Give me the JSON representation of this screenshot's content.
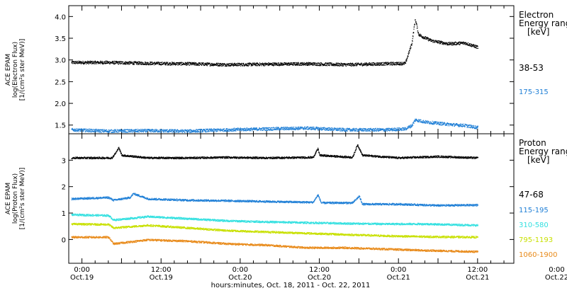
{
  "chart_data": [
    {
      "type": "scatter",
      "panel_id": "electron",
      "ylabel_lines": [
        "ACE EPAM",
        "log(Electron Flux)",
        "[1/(cm²s ster MeV)]"
      ],
      "ylim": [
        1.3,
        4.25
      ],
      "y_ticks": [
        1.5,
        2.0,
        2.5,
        3.0,
        3.5,
        4.0
      ],
      "y_tick_labels": [
        "1.5",
        "2.0",
        "2.5",
        "3.0",
        "3.5",
        "4.0"
      ],
      "legend_title": [
        "Electron",
        "Energy ranges",
        "[keV]"
      ],
      "series": [
        {
          "name": "38-53",
          "color": "#000000",
          "x": [
            0.75,
            12,
            24,
            36,
            48,
            60,
            72,
            84,
            96,
            102,
            104,
            105,
            106,
            107,
            110,
            115,
            120,
            124
          ],
          "values": [
            2.95,
            2.95,
            2.93,
            2.92,
            2.9,
            2.91,
            2.92,
            2.9,
            2.92,
            2.93,
            3.4,
            3.95,
            3.6,
            3.55,
            3.45,
            3.38,
            3.4,
            3.3
          ]
        },
        {
          "name": "175-315",
          "color": "#1f7fd6",
          "x": [
            0.75,
            12,
            24,
            36,
            48,
            60,
            72,
            84,
            96,
            102,
            104,
            105,
            108,
            112,
            116,
            120,
            124
          ],
          "values": [
            1.4,
            1.37,
            1.38,
            1.37,
            1.4,
            1.42,
            1.44,
            1.4,
            1.4,
            1.42,
            1.5,
            1.63,
            1.58,
            1.55,
            1.52,
            1.5,
            1.45
          ]
        }
      ]
    },
    {
      "type": "scatter",
      "panel_id": "proton",
      "ylabel_lines": [
        "ACE EPAM",
        "log(Proton Flux)",
        "[1/(cm²s ster MeV)]"
      ],
      "ylim": [
        -0.9,
        4.0
      ],
      "y_ticks": [
        0,
        1,
        2,
        3
      ],
      "y_tick_labels": [
        "0",
        "1",
        "2",
        "3"
      ],
      "legend_title": [
        "Proton",
        "Energy ranges",
        "[keV]"
      ],
      "series": [
        {
          "name": "47-68",
          "color": "#000000",
          "x": [
            0.75,
            13,
            14.5,
            15,
            16,
            24,
            36,
            48,
            60,
            74,
            75.5,
            76,
            86,
            87.5,
            89,
            100,
            112,
            124
          ],
          "values": [
            3.1,
            3.1,
            3.35,
            3.5,
            3.2,
            3.1,
            3.1,
            3.12,
            3.1,
            3.12,
            3.45,
            3.2,
            3.12,
            3.6,
            3.2,
            3.1,
            3.15,
            3.1
          ]
        },
        {
          "name": "115-195",
          "color": "#1f7fd6",
          "x": [
            0.75,
            12,
            13.5,
            18.5,
            19.5,
            24,
            36,
            48,
            60,
            74,
            75.5,
            76.5,
            86,
            88,
            89,
            100,
            112,
            124
          ],
          "values": [
            1.55,
            1.6,
            1.5,
            1.6,
            1.75,
            1.55,
            1.5,
            1.48,
            1.45,
            1.42,
            1.7,
            1.4,
            1.4,
            1.65,
            1.35,
            1.35,
            1.3,
            1.32
          ]
        },
        {
          "name": "310-580",
          "color": "#33e0e0",
          "x": [
            0.75,
            12,
            13.5,
            24,
            36,
            48,
            60,
            72,
            84,
            96,
            108,
            124
          ],
          "values": [
            0.95,
            0.92,
            0.75,
            0.88,
            0.8,
            0.72,
            0.68,
            0.65,
            0.62,
            0.6,
            0.6,
            0.55
          ]
        },
        {
          "name": "795-1193",
          "color": "#c8e000",
          "x": [
            0.75,
            12,
            13.5,
            24,
            36,
            48,
            60,
            72,
            84,
            96,
            108,
            124
          ],
          "values": [
            0.6,
            0.58,
            0.45,
            0.55,
            0.45,
            0.35,
            0.3,
            0.25,
            0.2,
            0.15,
            0.12,
            0.1
          ]
        },
        {
          "name": "1060-1900",
          "color": "#e88a1a",
          "x": [
            0.75,
            12,
            13.5,
            24,
            36,
            48,
            60,
            72,
            84,
            96,
            108,
            124
          ],
          "values": [
            0.1,
            0.1,
            -0.15,
            0.0,
            -0.05,
            -0.15,
            -0.2,
            -0.3,
            -0.3,
            -0.35,
            -0.4,
            -0.45
          ]
        }
      ]
    }
  ],
  "x_axis": {
    "xlim": [
      0,
      135
    ],
    "major_ticks": [
      4,
      16,
      28,
      40,
      52,
      64,
      76,
      88,
      100,
      112,
      124
    ],
    "major_tick_labels": [
      [
        "0:00",
        "Oct.19"
      ],
      [
        "12:00",
        "Oct.19"
      ],
      [
        "0:00",
        "Oct.20"
      ],
      [
        "12:00",
        "Oct.20"
      ],
      [
        "0:00",
        "Oct.21"
      ],
      [
        "12:00",
        "Oct.21"
      ],
      [
        "0:00",
        "Oct.22"
      ]
    ],
    "labeled_tick_values": [
      4,
      28,
      52,
      76,
      100,
      124,
      148
    ],
    "xlabel": "hours:minutes, Oct. 18, 2011 - Oct. 22, 2011"
  }
}
